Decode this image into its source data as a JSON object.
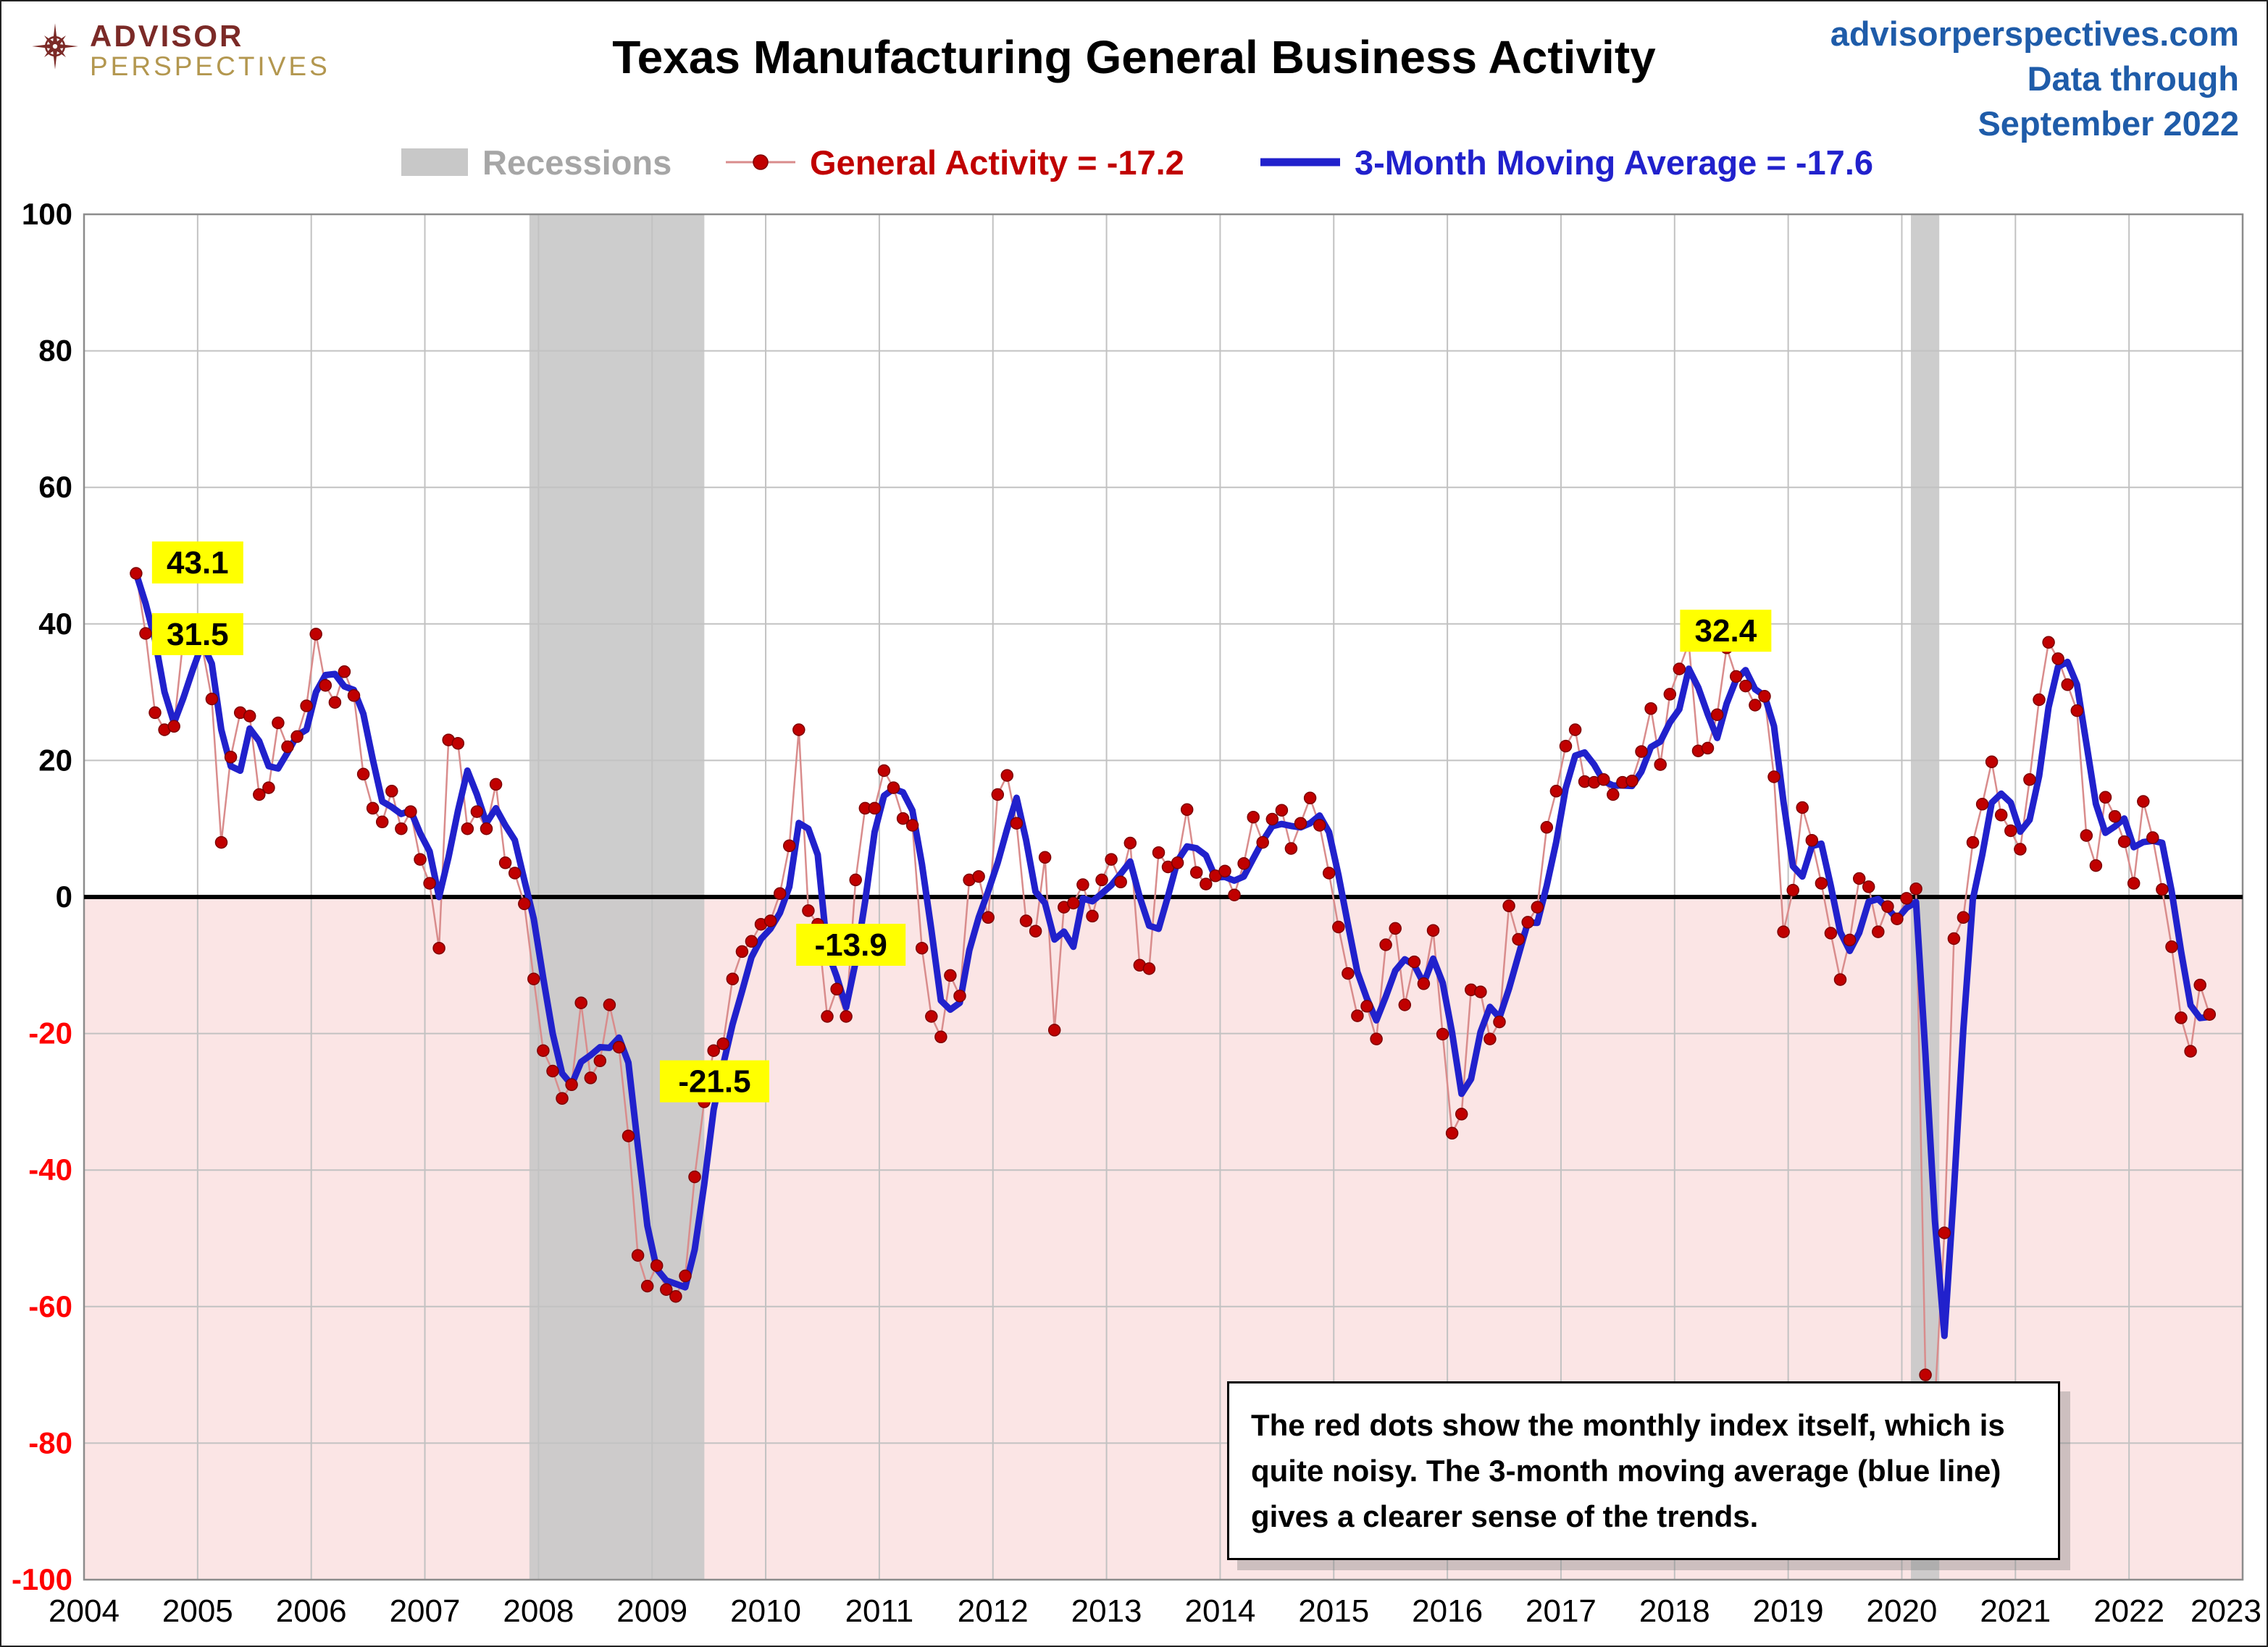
{
  "header": {
    "logo": {
      "line1": "ADVISOR",
      "line2": "PERSPECTIVES"
    },
    "title": "Texas Manufacturing General Business Activity",
    "source_lines": [
      "advisorperspectives.com",
      "Data through",
      "September 2022"
    ]
  },
  "legend": {
    "recessions": "Recessions",
    "general_activity": "General Activity = -17.2",
    "moving_average": "3-Month Moving Average = -17.6"
  },
  "caption": "The red dots show the monthly index itself, which is quite noisy. The 3-month moving average (blue line) gives a clearer sense of the trends.",
  "colors": {
    "title": "#000000",
    "logo_red": "#7b2a27",
    "logo_tan": "#b3974f",
    "source_blue": "#1f5ca9",
    "legend_gray": "#a6a6a6",
    "series_red": "#c00000",
    "series_red_connector": "#d98c8c",
    "series_blue": "#2121cc",
    "below_zero_pink": "#fbe5e5",
    "recession_gray": "#c8c8c8",
    "grid_gray": "#c2c2c2",
    "negative_tick_red": "#ff0000",
    "annotation_bg": "#ffff00"
  },
  "chart_data": {
    "type": "line",
    "title": "Texas Manufacturing General Business Activity",
    "x_axis": {
      "min": 2004,
      "max": 2023,
      "tick_labels": [
        "2004",
        "2005",
        "2006",
        "2007",
        "2008",
        "2009",
        "2010",
        "2011",
        "2012",
        "2013",
        "2014",
        "2015",
        "2016",
        "2017",
        "2018",
        "2019",
        "2020",
        "2021",
        "2022",
        "2023"
      ]
    },
    "y_axis": {
      "min": -100,
      "max": 100,
      "tick_step": 20
    },
    "recessions": [
      {
        "start": 2007.92,
        "end": 2009.46
      },
      {
        "start": 2020.08,
        "end": 2020.33
      }
    ],
    "annotations": [
      {
        "text": "43.1",
        "x": 2005.0,
        "y": 49
      },
      {
        "text": "31.5",
        "x": 2005.0,
        "y": 38.5
      },
      {
        "text": "-21.5",
        "x": 2009.55,
        "y": -27
      },
      {
        "text": "-13.9",
        "x": 2010.75,
        "y": -7
      },
      {
        "text": "32.4",
        "x": 2018.45,
        "y": 39
      }
    ],
    "series": [
      {
        "name": "General Activity",
        "style": "dots-with-thin-line",
        "last_value": -17.2,
        "start_month": "2004-06",
        "values": [
          47.4,
          38.6,
          27.0,
          24.5,
          25.0,
          38.0,
          37.0,
          36.5,
          29.0,
          8.0,
          20.5,
          27.0,
          26.5,
          15.0,
          16.0,
          25.5,
          22.0,
          23.5,
          28.0,
          38.5,
          31.0,
          28.5,
          33.0,
          29.5,
          18.0,
          13.0,
          11.0,
          15.5,
          10.0,
          12.5,
          5.5,
          2.0,
          -7.5,
          23.0,
          22.5,
          10.0,
          12.5,
          10.0,
          16.5,
          5.0,
          3.5,
          -1.0,
          -12.0,
          -22.5,
          -25.5,
          -29.5,
          -27.5,
          -15.5,
          -26.5,
          -24.0,
          -15.8,
          -22.0,
          -35.0,
          -52.5,
          -57.0,
          -54.0,
          -57.5,
          -58.5,
          -55.5,
          -41.0,
          -30.0,
          -22.5,
          -21.5,
          -12.0,
          -8.0,
          -6.5,
          -4.0,
          -3.5,
          0.5,
          7.5,
          24.5,
          -2.0,
          -4.0,
          -17.5,
          -13.5,
          -17.5,
          2.5,
          13.0,
          13.0,
          18.5,
          16.0,
          11.5,
          10.5,
          -7.5,
          -17.5,
          -20.5,
          -11.5,
          -14.5,
          2.5,
          3.0,
          -3.0,
          15.0,
          17.8,
          10.8,
          -3.5,
          -5.0,
          5.8,
          -19.5,
          -1.5,
          -0.9,
          1.8,
          -2.8,
          2.5,
          5.5,
          2.2,
          7.9,
          -10.0,
          -10.5,
          6.5,
          4.4,
          5.0,
          12.8,
          3.6,
          1.9,
          3.1,
          3.8,
          0.3,
          4.9,
          11.7,
          8.0,
          11.4,
          12.7,
          7.1,
          10.8,
          14.5,
          10.5,
          3.5,
          -4.4,
          -11.2,
          -17.4,
          -16.0,
          -20.8,
          -7.0,
          -4.6,
          -15.8,
          -9.5,
          -12.7,
          -4.9,
          -20.1,
          -34.6,
          -31.8,
          -13.6,
          -13.9,
          -20.8,
          -18.3,
          -1.3,
          -6.2,
          -3.7,
          -1.5,
          10.2,
          15.5,
          22.1,
          24.5,
          16.9,
          16.8,
          17.2,
          15.0,
          16.8,
          17.0,
          21.3,
          27.6,
          19.4,
          29.7,
          33.4,
          37.2,
          21.4,
          21.8,
          26.7,
          36.5,
          32.3,
          30.9,
          28.1,
          29.4,
          17.6,
          -5.1,
          1.0,
          13.1,
          8.3,
          2.0,
          -5.3,
          -12.1,
          -6.3,
          2.7,
          1.5,
          -5.1,
          -1.4,
          -3.2,
          -0.2,
          1.2,
          -70.0,
          -73.7,
          -49.2,
          -6.1,
          -3.0,
          8.0,
          13.6,
          19.8,
          12.0,
          9.7,
          7.0,
          17.2,
          28.9,
          37.3,
          34.9,
          31.1,
          27.3,
          9.0,
          4.6,
          14.6,
          11.8,
          8.1,
          2.0,
          14.0,
          8.7,
          1.1,
          -7.3,
          -17.7,
          -22.6,
          -12.9,
          -17.2
        ]
      },
      {
        "name": "3-Month Moving Average",
        "style": "thick-line",
        "derived": "trailing_mean_3_of_series_0",
        "last_value": -17.6
      }
    ]
  }
}
